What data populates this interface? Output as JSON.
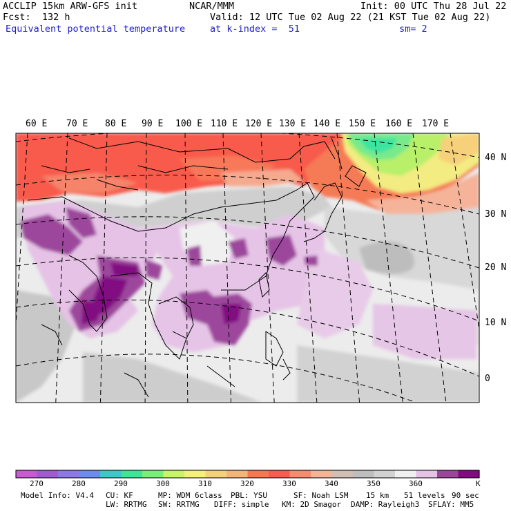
{
  "header": {
    "left1": "ACCLIP 15km ARW-GFS init",
    "center1": "NCAR/MMM",
    "right1": "Init: 00 UTC Thu 28 Jul 22",
    "left2": "Fcst:  132 h",
    "right2": "Valid: 12 UTC Tue 02 Aug 22 (21 KST Tue 02 Aug 22)",
    "left3": "Equivalent potential temperature",
    "center3": "at k-index =  51",
    "right3": "sm= 2"
  },
  "map": {
    "lon_labels": [
      "60 E",
      "70 E",
      "80 E",
      "90 E",
      "100 E",
      "110 E",
      "120 E",
      "130 E",
      "140 E",
      "150 E",
      "160 E",
      "170 E"
    ],
    "lat_labels": [
      "40 N",
      "30 N",
      "20 N",
      "10 N",
      "0"
    ],
    "field": "Equivalent potential temperature"
  },
  "colorbar": {
    "colors": [
      "#c85ad2",
      "#a05ad2",
      "#8c78e6",
      "#6e8cf0",
      "#3cc8c8",
      "#3ce696",
      "#78f078",
      "#c8f564",
      "#f5f078",
      "#f5d278",
      "#f5b478",
      "#f57850",
      "#fa5a50",
      "#f58c6e",
      "#f5b496",
      "#d2beb4",
      "#bebebe",
      "#d2d2d2",
      "#f0f0f0",
      "#e6c3e6",
      "#9b469b",
      "#820a82"
    ],
    "labels": [
      "270",
      "280",
      "290",
      "300",
      "310",
      "320",
      "330",
      "340",
      "350",
      "360"
    ],
    "unit": "K"
  },
  "footer": {
    "line1": [
      "Model Info: V4.4",
      "CU: KF",
      "MP: WDM 6class",
      "PBL: YSU",
      "SF: Noah LSM",
      "15 km",
      "51 levels",
      "90 sec"
    ],
    "line2": [
      "LW: RRTMG",
      "SW: RRTMG",
      "DIFF: simple",
      "KM: 2D Smagor",
      "DAMP: Rayleigh3",
      "SFLAY: MM5"
    ]
  }
}
